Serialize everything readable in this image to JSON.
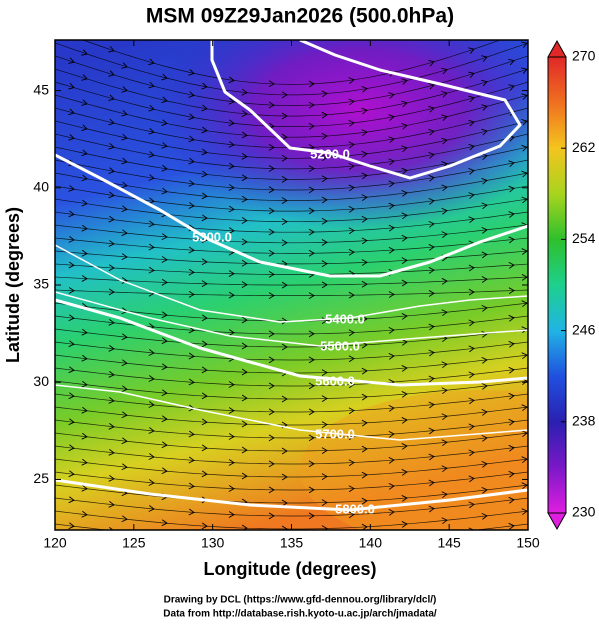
{
  "chart_data": {
    "type": "contour",
    "title": "MSM 09Z29Jan2026 (500.0hPa)",
    "xlabel": "Longitude (degrees)",
    "ylabel": "Latitude  (degrees)",
    "xlim": [
      120,
      150
    ],
    "xticks": [
      120,
      125,
      130,
      135,
      140,
      145,
      150
    ],
    "ylim": [
      22.4,
      47.6
    ],
    "yticks": [
      25,
      30,
      35,
      40,
      45
    ],
    "colorbar": {
      "lim": [
        230,
        270
      ],
      "ticks": [
        230,
        238,
        246,
        254,
        262,
        270
      ],
      "colors": [
        "#e01ee0",
        "#7a18c8",
        "#2a20b0",
        "#2050e0",
        "#20b4e4",
        "#1ed08c",
        "#2ec02c",
        "#a8d41e",
        "#f4c41e",
        "#f07020",
        "#e02828"
      ]
    },
    "contours": [
      {
        "value": 5200,
        "label": "5200.0"
      },
      {
        "value": 5300,
        "label": "5300.0"
      },
      {
        "value": 5400,
        "label": "5400.0"
      },
      {
        "value": 5500,
        "label": "5500.0"
      },
      {
        "value": 5600,
        "label": "5600.0"
      },
      {
        "value": 5700,
        "label": "5700.0"
      },
      {
        "value": 5800,
        "label": "5800.0"
      }
    ],
    "footer": [
      "Drawing by DCL (https://www.gfd-dennou.org/library/dcl/)",
      "Data from http://database.rish.kyoto-u.ac.jp/arch/jmadata/"
    ]
  }
}
